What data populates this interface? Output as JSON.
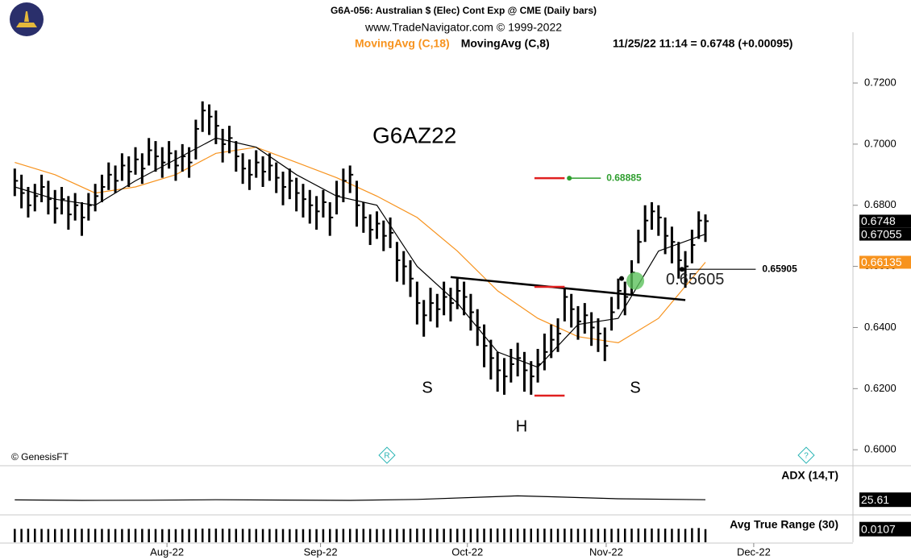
{
  "chart_data": {
    "type": "ohlc",
    "title": "G6A-056:  Australian $ (Elec) Cont Exp @ CME  (Daily bars)",
    "subtitle": "www.TradeNavigator.com © 1999-2022",
    "quote": "11/25/22 11:14 = 0.6748 (+0.00095)",
    "contract": "G6AZ22",
    "credit": "© GenesisFT",
    "pattern_labels": [
      "S",
      "H",
      "S"
    ],
    "icons": [
      "R",
      "?"
    ],
    "color": "#000000",
    "xlim": [
      -1,
      125
    ],
    "xticks": [
      {
        "value": 22.7,
        "label": "Aug-22"
      },
      {
        "value": 45.6,
        "label": "Sep-22"
      },
      {
        "value": 67.5,
        "label": "Oct-22"
      },
      {
        "value": 88.2,
        "label": "Nov-22"
      },
      {
        "value": 110.2,
        "label": "Dec-22"
      }
    ],
    "ylim": [
      0.5953,
      0.7353
    ],
    "yticks": [
      {
        "value": 0.6,
        "label": "0.6000"
      },
      {
        "value": 0.62,
        "label": "0.6200"
      },
      {
        "value": 0.64,
        "label": "0.6400"
      },
      {
        "value": 0.66,
        "label": "0.6600"
      },
      {
        "value": 0.68,
        "label": "0.6800"
      },
      {
        "value": 0.7,
        "label": "0.7000"
      },
      {
        "value": 0.72,
        "label": "0.7200"
      }
    ],
    "high": [
      0.692,
      0.69,
      0.686,
      0.687,
      0.69,
      0.688,
      0.685,
      0.686,
      0.683,
      0.684,
      0.681,
      0.684,
      0.687,
      0.69,
      0.694,
      0.693,
      0.697,
      0.696,
      0.699,
      0.697,
      0.702,
      0.701,
      0.699,
      0.701,
      0.698,
      0.7,
      0.699,
      0.708,
      0.714,
      0.713,
      0.711,
      0.705,
      0.706,
      0.701,
      0.697,
      0.695,
      0.698,
      0.696,
      0.697,
      0.694,
      0.691,
      0.692,
      0.689,
      0.687,
      0.685,
      0.683,
      0.685,
      0.681,
      0.688,
      0.692,
      0.693,
      0.688,
      0.681,
      0.677,
      0.678,
      0.675,
      0.676,
      0.668,
      0.665,
      0.662,
      0.655,
      0.649,
      0.653,
      0.651,
      0.655,
      0.653,
      0.656,
      0.655,
      0.651,
      0.646,
      0.641,
      0.636,
      0.632,
      0.63,
      0.633,
      0.635,
      0.632,
      0.629,
      0.633,
      0.638,
      0.641,
      0.643,
      0.653,
      0.651,
      0.647,
      0.648,
      0.645,
      0.643,
      0.64,
      0.65,
      0.656,
      0.655,
      0.662,
      0.672,
      0.68,
      0.681,
      0.68,
      0.676,
      0.673,
      0.668,
      0.665,
      0.672,
      0.678,
      0.677
    ],
    "low": [
      0.683,
      0.679,
      0.676,
      0.678,
      0.681,
      0.677,
      0.674,
      0.677,
      0.672,
      0.675,
      0.67,
      0.675,
      0.678,
      0.681,
      0.685,
      0.684,
      0.688,
      0.686,
      0.69,
      0.687,
      0.693,
      0.691,
      0.689,
      0.692,
      0.688,
      0.691,
      0.689,
      0.695,
      0.704,
      0.703,
      0.7,
      0.694,
      0.697,
      0.691,
      0.687,
      0.685,
      0.689,
      0.686,
      0.688,
      0.684,
      0.68,
      0.682,
      0.678,
      0.676,
      0.674,
      0.672,
      0.676,
      0.67,
      0.677,
      0.681,
      0.684,
      0.673,
      0.671,
      0.667,
      0.669,
      0.665,
      0.666,
      0.655,
      0.654,
      0.65,
      0.641,
      0.637,
      0.642,
      0.64,
      0.644,
      0.642,
      0.646,
      0.644,
      0.639,
      0.634,
      0.627,
      0.623,
      0.619,
      0.618,
      0.622,
      0.624,
      0.619,
      0.618,
      0.622,
      0.626,
      0.63,
      0.632,
      0.642,
      0.64,
      0.636,
      0.638,
      0.634,
      0.632,
      0.629,
      0.639,
      0.646,
      0.644,
      0.651,
      0.661,
      0.668,
      0.672,
      0.67,
      0.664,
      0.661,
      0.656,
      0.653,
      0.661,
      0.669,
      0.668
    ],
    "close": [
      0.688,
      0.684,
      0.68,
      0.683,
      0.686,
      0.682,
      0.679,
      0.682,
      0.677,
      0.68,
      0.676,
      0.68,
      0.683,
      0.686,
      0.69,
      0.688,
      0.693,
      0.691,
      0.695,
      0.692,
      0.698,
      0.696,
      0.694,
      0.697,
      0.693,
      0.696,
      0.694,
      0.705,
      0.711,
      0.709,
      0.706,
      0.7,
      0.702,
      0.696,
      0.692,
      0.69,
      0.694,
      0.691,
      0.693,
      0.689,
      0.686,
      0.688,
      0.684,
      0.682,
      0.68,
      0.678,
      0.681,
      0.676,
      0.683,
      0.688,
      0.69,
      0.68,
      0.676,
      0.672,
      0.674,
      0.67,
      0.671,
      0.662,
      0.66,
      0.656,
      0.648,
      0.644,
      0.648,
      0.646,
      0.65,
      0.648,
      0.652,
      0.65,
      0.645,
      0.64,
      0.634,
      0.63,
      0.626,
      0.624,
      0.628,
      0.63,
      0.626,
      0.624,
      0.628,
      0.632,
      0.636,
      0.638,
      0.65,
      0.646,
      0.642,
      0.644,
      0.64,
      0.638,
      0.634,
      0.645,
      0.652,
      0.65,
      0.658,
      0.668,
      0.675,
      0.678,
      0.676,
      0.67,
      0.668,
      0.662,
      0.66,
      0.667,
      0.675,
      0.6748
    ],
    "series": [
      {
        "name": "MovingAvg (C,18)",
        "color": "#f7931e",
        "x": [
          0,
          6,
          12,
          18,
          24,
          30,
          36,
          42,
          48,
          54,
          60,
          66,
          72,
          78,
          84,
          90,
          96,
          103
        ],
        "values": [
          0.694,
          0.69,
          0.684,
          0.686,
          0.69,
          0.697,
          0.699,
          0.694,
          0.689,
          0.683,
          0.676,
          0.665,
          0.652,
          0.643,
          0.637,
          0.635,
          0.643,
          0.66135
        ]
      },
      {
        "name": "MovingAvg (C,8)",
        "color": "#000000",
        "x": [
          0,
          6,
          12,
          18,
          24,
          30,
          36,
          42,
          48,
          54,
          60,
          66,
          72,
          78,
          84,
          90,
          96,
          103
        ],
        "values": [
          0.686,
          0.682,
          0.68,
          0.688,
          0.695,
          0.702,
          0.699,
          0.69,
          0.683,
          0.68,
          0.66,
          0.648,
          0.632,
          0.627,
          0.641,
          0.643,
          0.665,
          0.67055
        ]
      }
    ],
    "neckline": {
      "x": [
        65,
        100
      ],
      "values": [
        0.6565,
        0.649
      ]
    },
    "measure": {
      "x": [
        77.5,
        82
      ],
      "neck": 0.6533,
      "head": 0.6177,
      "target": 0.68885,
      "target_x": [
        82.7,
        87.4
      ]
    },
    "breakout": {
      "x": 90.5,
      "value": 0.65605
    },
    "support": {
      "x": [
        99.5,
        110.5
      ],
      "value": 0.65905
    },
    "indicators": [
      {
        "name": "ADX (14,T)",
        "type": "line",
        "color": "#000000",
        "ylim": [
          18,
          44
        ],
        "x": [
          0,
          10,
          20,
          30,
          40,
          50,
          60,
          70,
          75,
          80,
          90,
          103
        ],
        "values": [
          25.5,
          25.2,
          25.3,
          25.6,
          25.4,
          25.2,
          25.8,
          27.2,
          27.9,
          27.4,
          26.2,
          25.61
        ]
      },
      {
        "name": "Avg True Range (30)",
        "type": "bar",
        "color": "#000000",
        "ylim": [
          0,
          0.021
        ],
        "values": [
          0.0109,
          0.0109,
          0.011,
          0.011,
          0.0109,
          0.0108,
          0.0108,
          0.0109,
          0.0109,
          0.011,
          0.011,
          0.011,
          0.0109,
          0.0109,
          0.0108,
          0.0108,
          0.0108,
          0.0109,
          0.0109,
          0.0109,
          0.0108,
          0.0108,
          0.0107,
          0.0107,
          0.0107,
          0.0108,
          0.0108,
          0.011,
          0.0111,
          0.0111,
          0.0111,
          0.011,
          0.011,
          0.0109,
          0.0109,
          0.0109,
          0.0108,
          0.0108,
          0.0108,
          0.0108,
          0.0108,
          0.0107,
          0.0107,
          0.0107,
          0.0107,
          0.0107,
          0.0107,
          0.0108,
          0.0108,
          0.0109,
          0.0109,
          0.0109,
          0.0109,
          0.0109,
          0.0108,
          0.0108,
          0.0108,
          0.0109,
          0.0109,
          0.011,
          0.0111,
          0.0111,
          0.0111,
          0.011,
          0.011,
          0.011,
          0.011,
          0.011,
          0.011,
          0.0111,
          0.0111,
          0.0112,
          0.0112,
          0.0112,
          0.0111,
          0.0111,
          0.0111,
          0.0111,
          0.0111,
          0.0111,
          0.011,
          0.011,
          0.0111,
          0.0111,
          0.011,
          0.011,
          0.011,
          0.011,
          0.011,
          0.011,
          0.0111,
          0.0111,
          0.0111,
          0.0112,
          0.0112,
          0.0112,
          0.0111,
          0.0111,
          0.011,
          0.011,
          0.0109,
          0.0115,
          0.0116,
          0.0107
        ]
      }
    ]
  }
}
